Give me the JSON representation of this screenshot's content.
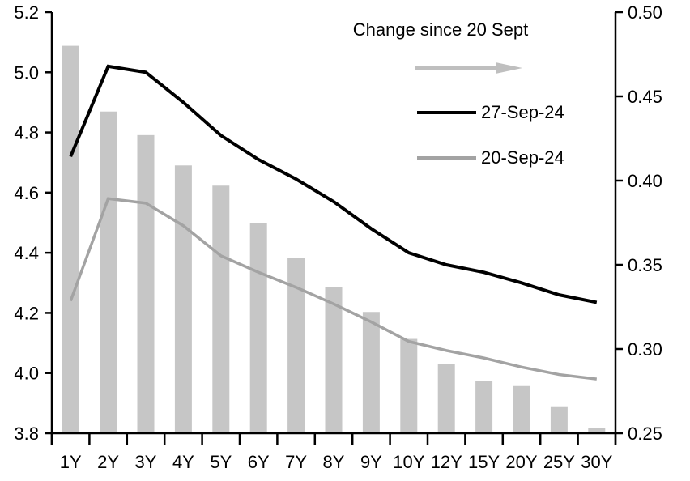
{
  "legend": {
    "title": "Change since 20 Sept",
    "arrow_color": "#bfbfbf",
    "series": [
      {
        "label": "27-Sep-24",
        "color": "#000000"
      },
      {
        "label": "20-Sep-24",
        "color": "#a3a3a3"
      }
    ]
  },
  "chart_data": {
    "type": "bar",
    "subtype": "dual-axis bar + line combo",
    "categories": [
      "1Y",
      "2Y",
      "3Y",
      "4Y",
      "5Y",
      "6Y",
      "7Y",
      "8Y",
      "9Y",
      "10Y",
      "12Y",
      "15Y",
      "20Y",
      "25Y",
      "30Y"
    ],
    "series": [
      {
        "name": "Change since 20 Sept",
        "type": "bar",
        "axis": "right",
        "color": "#c6c6c6",
        "values": [
          0.48,
          0.441,
          0.427,
          0.409,
          0.397,
          0.375,
          0.354,
          0.337,
          0.322,
          0.306,
          0.291,
          0.281,
          0.278,
          0.266,
          0.253
        ]
      },
      {
        "name": "27-Sep-24",
        "type": "line",
        "axis": "left",
        "color": "#000000",
        "stroke_width": 4,
        "values": [
          4.72,
          5.02,
          5.0,
          4.9,
          4.79,
          4.71,
          4.645,
          4.57,
          4.48,
          4.4,
          4.36,
          4.335,
          4.3,
          4.26,
          4.235
        ]
      },
      {
        "name": "20-Sep-24",
        "type": "line",
        "axis": "left",
        "color": "#a3a3a3",
        "stroke_width": 3.5,
        "values": [
          4.24,
          4.58,
          4.565,
          4.49,
          4.39,
          4.335,
          4.285,
          4.23,
          4.17,
          4.105,
          4.075,
          4.05,
          4.02,
          3.995,
          3.98
        ]
      }
    ],
    "left_axis": {
      "min": 3.8,
      "max": 5.2,
      "tick_step": 0.2,
      "ticks": [
        "5.2",
        "5.0",
        "4.8",
        "4.6",
        "4.4",
        "4.2",
        "4.0",
        "3.8"
      ]
    },
    "right_axis": {
      "min": 0.25,
      "max": 0.5,
      "tick_step": 0.05,
      "ticks": [
        "0.50",
        "0.45",
        "0.40",
        "0.35",
        "0.30",
        "0.25"
      ]
    },
    "grid": false,
    "legend_position": "top-center-inside",
    "title": "",
    "xlabel": "",
    "ylabel": ""
  }
}
